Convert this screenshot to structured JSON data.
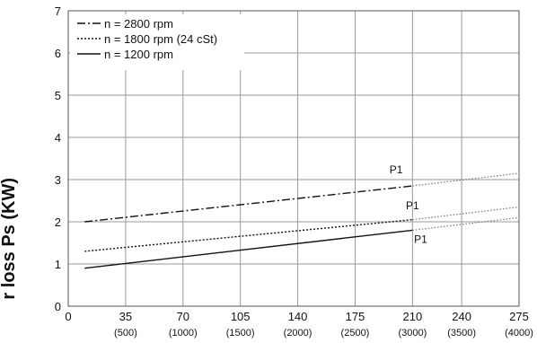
{
  "chart_data": {
    "type": "line",
    "ylabel": "r loss Ps (KW)",
    "xlim": [
      0,
      275
    ],
    "ylim": [
      0,
      7
    ],
    "x_ticks": [
      {
        "value": 0,
        "label": "0",
        "sub": ""
      },
      {
        "value": 35,
        "label": "35",
        "sub": "(500)"
      },
      {
        "value": 70,
        "label": "70",
        "sub": "(1000)"
      },
      {
        "value": 105,
        "label": "105",
        "sub": "(1500)"
      },
      {
        "value": 140,
        "label": "140",
        "sub": "(2000)"
      },
      {
        "value": 175,
        "label": "175",
        "sub": "(2500)"
      },
      {
        "value": 210,
        "label": "210",
        "sub": "(3000)"
      },
      {
        "value": 240,
        "label": "240",
        "sub": "(3500)"
      },
      {
        "value": 275,
        "label": "275",
        "sub": "(4000)"
      }
    ],
    "y_ticks": [
      0,
      1,
      2,
      3,
      4,
      5,
      6,
      7
    ],
    "grid": true,
    "legend_position": "top-left",
    "series": [
      {
        "name": "n = 2800 rpm",
        "dash": "dashdot",
        "x": [
          10,
          210
        ],
        "y": [
          2.0,
          2.85
        ],
        "ext_x": [
          210,
          275
        ],
        "ext_y": [
          2.85,
          3.15
        ],
        "label": "P1",
        "label_at": [
          200,
          3.15
        ]
      },
      {
        "name": "n = 1800 rpm (24 cSt)",
        "dash": "dotted",
        "x": [
          10,
          210
        ],
        "y": [
          1.3,
          2.05
        ],
        "ext_x": [
          210,
          275
        ],
        "ext_y": [
          2.05,
          2.35
        ],
        "label": "P1",
        "label_at": [
          210,
          2.3
        ]
      },
      {
        "name": "n = 1200 rpm",
        "dash": "solid",
        "x": [
          10,
          210
        ],
        "y": [
          0.9,
          1.8
        ],
        "ext_x": [
          210,
          275
        ],
        "ext_y": [
          1.8,
          2.1
        ],
        "label": "P1",
        "label_at": [
          215,
          1.5
        ]
      }
    ]
  }
}
